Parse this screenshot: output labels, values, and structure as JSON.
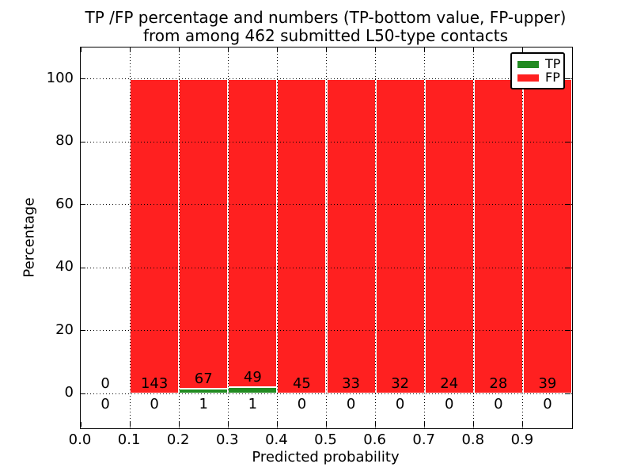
{
  "chart_data": {
    "type": "bar",
    "stacked": true,
    "title_line1": "TP /FP percentage and numbers (TP-bottom value, FP-upper)",
    "title_line2": "from among 462 submitted L50-type contacts",
    "xlabel": "Predicted probability",
    "ylabel": "Percentage",
    "xlim": [
      0.0,
      1.0
    ],
    "ylim": [
      -11,
      110
    ],
    "xtick_values": [
      0.0,
      0.1,
      0.2,
      0.3,
      0.4,
      0.5,
      0.6,
      0.7,
      0.8,
      0.9
    ],
    "xtick_labels": [
      "0.0",
      "0.1",
      "0.2",
      "0.3",
      "0.4",
      "0.5",
      "0.6",
      "0.7",
      "0.8",
      "0.9"
    ],
    "ytick_values": [
      0,
      20,
      40,
      60,
      80,
      100
    ],
    "ytick_labels": [
      "0",
      "20",
      "40",
      "60",
      "80",
      "100"
    ],
    "bin_starts": [
      0.0,
      0.1,
      0.2,
      0.3,
      0.4,
      0.5,
      0.6,
      0.7,
      0.8,
      0.9
    ],
    "bin_width": 0.1,
    "series": [
      {
        "name": "TP",
        "color": "#228b22",
        "counts": [
          0,
          0,
          1,
          1,
          0,
          0,
          0,
          0,
          0,
          0
        ]
      },
      {
        "name": "FP",
        "color": "#ff2020",
        "counts": [
          0,
          143,
          67,
          49,
          45,
          33,
          32,
          24,
          28,
          39
        ]
      }
    ],
    "bar_total_percent": 100,
    "bar_edge_color": "#ffffff",
    "grid_style": "dotted",
    "legend_position": "upper right"
  },
  "legend": {
    "items": [
      {
        "label": "TP",
        "color": "#228b22"
      },
      {
        "label": "FP",
        "color": "#ff2020"
      }
    ]
  }
}
